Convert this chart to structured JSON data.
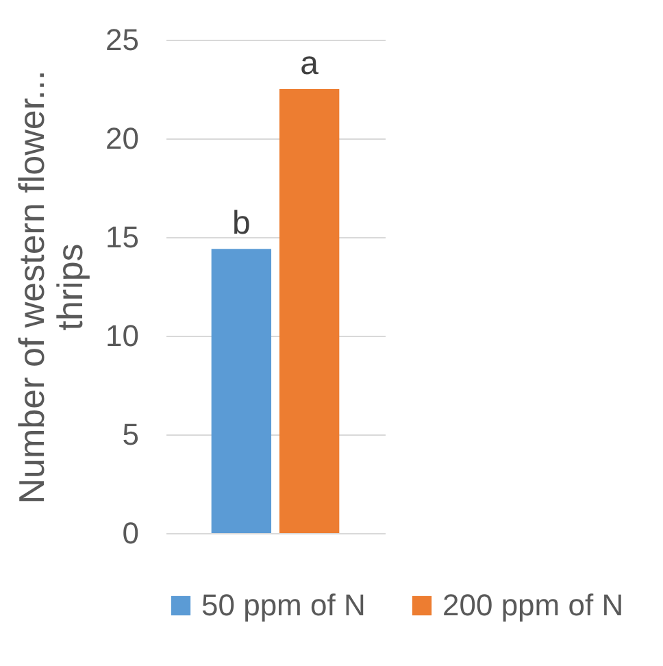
{
  "chart_data": {
    "type": "bar",
    "ylabel": "Number of western flower...\nthrips",
    "categories": [
      null
    ],
    "series": [
      {
        "name": "50 ppm of N",
        "color": "#5b9bd5",
        "values": [
          14.4
        ]
      },
      {
        "name": "200 ppm of N",
        "color": "#ed7d31",
        "values": [
          22.5
        ]
      }
    ],
    "ylim": [
      0,
      25
    ],
    "yticks": [
      0,
      5,
      10,
      15,
      20,
      25
    ],
    "grid": "y",
    "legend": "bottom",
    "annotations": [
      {
        "text": "b",
        "y": 14.4
      },
      {
        "text": "a",
        "y": 22.5
      }
    ]
  }
}
